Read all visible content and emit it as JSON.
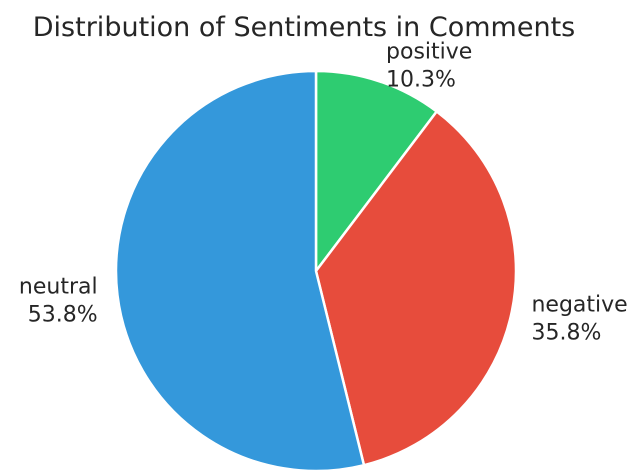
{
  "chart_data": {
    "type": "pie",
    "title": "Distribution of Sentiments in Comments",
    "slices": [
      {
        "label": "positive",
        "value": 10.3,
        "pct_label": "10.3%",
        "color": "#2ecc71"
      },
      {
        "label": "negative",
        "value": 35.8,
        "pct_label": "35.8%",
        "color": "#e74c3c"
      },
      {
        "label": "neutral",
        "value": 53.8,
        "pct_label": "53.8%",
        "color": "#3498db"
      }
    ],
    "start": "top",
    "direction": "clockwise",
    "wedge_edge_color": "#ffffff"
  }
}
